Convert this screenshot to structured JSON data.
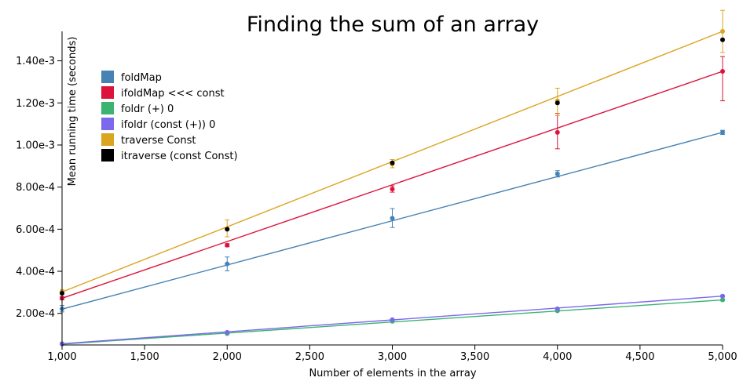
{
  "chart_data": {
    "type": "line",
    "title": "Finding the sum of an array",
    "xlabel": "Number of elements in the array",
    "ylabel": "Mean running time (seconds)",
    "xlim": [
      1000,
      5000
    ],
    "ylim": [
      5e-05,
      0.00154
    ],
    "x_ticks": [
      1000,
      1500,
      2000,
      2500,
      3000,
      3500,
      4000,
      4500,
      5000
    ],
    "x_tick_labels": [
      "1,000",
      "1,500",
      "2,000",
      "2,500",
      "3,000",
      "3,500",
      "4,000",
      "4,500",
      "5,000"
    ],
    "y_ticks": [
      0.0002,
      0.0004,
      0.0006,
      0.0008,
      0.001,
      0.0012,
      0.0014
    ],
    "y_tick_labels": [
      "2.00e-4",
      "4.00e-4",
      "6.00e-4",
      "8.00e-4",
      "1.00e-3",
      "1.20e-3",
      "1.40e-3"
    ],
    "grid": false,
    "legend_position": "top-left",
    "series": [
      {
        "name": "foldMap",
        "color": "#4682b4",
        "line": true,
        "fit": [
          0.00022,
          0.00106
        ],
        "points": [
          {
            "x": 1000,
            "y": 0.000222,
            "err": [
              0.000207,
              0.000238
            ]
          },
          {
            "x": 2000,
            "y": 0.000435,
            "err": [
              0.000402,
              0.000468
            ]
          },
          {
            "x": 3000,
            "y": 0.000652,
            "err": [
              0.000608,
              0.000698
            ]
          },
          {
            "x": 4000,
            "y": 0.000863,
            "err": [
              0.000848,
              0.000878
            ]
          },
          {
            "x": 5000,
            "y": 0.00106,
            "err": [
              0.00105,
              0.00107
            ]
          }
        ]
      },
      {
        "name": "ifoldMap <<< const",
        "color": "#dc143c",
        "line": true,
        "fit": [
          0.000272,
          0.00135
        ],
        "points": [
          {
            "x": 1000,
            "y": 0.000272,
            "err": [
              0.000265,
              0.00028
            ]
          },
          {
            "x": 2000,
            "y": 0.000524,
            "err": [
              0.000517,
              0.000531
            ]
          },
          {
            "x": 3000,
            "y": 0.000791,
            "err": [
              0.000776,
              0.000806
            ]
          },
          {
            "x": 4000,
            "y": 0.00106,
            "err": [
              0.000982,
              0.00115
            ]
          },
          {
            "x": 5000,
            "y": 0.00135,
            "err": [
              0.00121,
              0.00142
            ]
          }
        ]
      },
      {
        "name": "foldr (+) 0",
        "color": "#3cb371",
        "line": true,
        "fit": [
          5.4e-05,
          0.000264
        ],
        "points": [
          {
            "x": 1000,
            "y": 5.4e-05,
            "err": [
              5.3e-05,
              5.5e-05
            ]
          },
          {
            "x": 2000,
            "y": 0.000104,
            "err": [
              0.000102,
              0.000106
            ]
          },
          {
            "x": 3000,
            "y": 0.000162,
            "err": [
              0.000159,
              0.000165
            ]
          },
          {
            "x": 4000,
            "y": 0.000212,
            "err": [
              0.000209,
              0.000215
            ]
          },
          {
            "x": 5000,
            "y": 0.000264,
            "err": [
              0.00026,
              0.000268
            ]
          }
        ]
      },
      {
        "name": "ifoldr (const (+)) 0",
        "color": "#7b68ee",
        "line": true,
        "fit": [
          5.6e-05,
          0.000282
        ],
        "points": [
          {
            "x": 1000,
            "y": 5.6e-05,
            "err": [
              5.5e-05,
              5.7e-05
            ]
          },
          {
            "x": 2000,
            "y": 0.00011,
            "err": [
              0.000108,
              0.000112
            ]
          },
          {
            "x": 3000,
            "y": 0.00017,
            "err": [
              0.000167,
              0.000173
            ]
          },
          {
            "x": 4000,
            "y": 0.000222,
            "err": [
              0.000219,
              0.000225
            ]
          },
          {
            "x": 5000,
            "y": 0.000282,
            "err": [
              0.000278,
              0.000286
            ]
          }
        ]
      },
      {
        "name": "traverse Const",
        "color": "#daa520",
        "line": true,
        "fit": [
          0.000302,
          0.00154
        ],
        "points": [
          {
            "x": 1000,
            "y": 0.000302,
            "err": [
              0.000292,
              0.000312
            ]
          },
          {
            "x": 2000,
            "y": 0.000601,
            "err": [
              0.000564,
              0.000644
            ]
          },
          {
            "x": 3000,
            "y": 0.000909,
            "err": [
              0.000892,
              0.000931
            ]
          },
          {
            "x": 4000,
            "y": 0.00121,
            "err": [
              0.00114,
              0.00127
            ]
          },
          {
            "x": 5000,
            "y": 0.00154,
            "err": [
              0.00144,
              0.00164
            ]
          }
        ]
      },
      {
        "name": "itraverse (const Const)",
        "color": "#000000",
        "line": false,
        "points": [
          {
            "x": 1000,
            "y": 0.000296
          },
          {
            "x": 2000,
            "y": 0.0006
          },
          {
            "x": 3000,
            "y": 0.000915
          },
          {
            "x": 4000,
            "y": 0.0012
          },
          {
            "x": 5000,
            "y": 0.0015
          }
        ]
      }
    ]
  }
}
